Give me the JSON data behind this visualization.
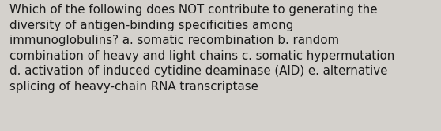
{
  "text": "Which of the following does NOT contribute to generating the\ndiversity of antigen-binding specificities among\nimmunoglobulins? a. somatic recombination b. random\ncombination of heavy and light chains c. somatic hypermutation\nd. activation of induced cytidine deaminase (AID) e. alternative\nsplicing of heavy-chain RNA transcriptase",
  "background_color": "#d4d1cc",
  "text_color": "#1a1a1a",
  "font_size": 10.8,
  "fig_width": 5.58,
  "fig_height": 1.67,
  "dpi": 100
}
